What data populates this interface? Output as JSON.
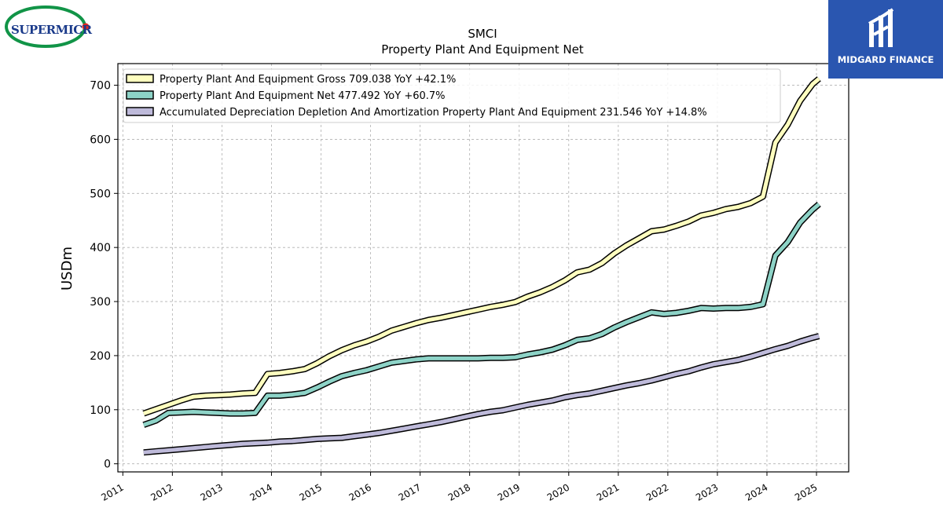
{
  "brand": {
    "left_logo_text": "SUPERMICR",
    "right_logo_text": "MIDGARD FINANCE"
  },
  "colors": {
    "gross": "#ffffbf",
    "net": "#8dd3c7",
    "accum": "#bebada",
    "brand_blue": "#2a56b0",
    "logo_green": "#119447",
    "logo_red": "#e0261f"
  },
  "chart_data": {
    "type": "line",
    "title": "SMCI",
    "subtitle": "Property Plant And Equipment Net",
    "xlabel": "",
    "ylabel": "USDm",
    "ylim": [
      -15,
      740
    ],
    "xlim": [
      2010.9,
      2025.65
    ],
    "yticks": [
      0,
      100,
      200,
      300,
      400,
      500,
      600,
      700
    ],
    "xticks": [
      2011,
      2012,
      2013,
      2014,
      2015,
      2016,
      2017,
      2018,
      2019,
      2020,
      2021,
      2022,
      2023,
      2024,
      2025
    ],
    "grid": true,
    "legend_position": "top-left",
    "x": [
      2011.42,
      2011.67,
      2011.92,
      2012.17,
      2012.42,
      2012.67,
      2012.92,
      2013.17,
      2013.42,
      2013.67,
      2013.92,
      2014.17,
      2014.42,
      2014.67,
      2014.92,
      2015.17,
      2015.42,
      2015.67,
      2015.92,
      2016.17,
      2016.42,
      2016.67,
      2016.92,
      2017.17,
      2017.42,
      2017.67,
      2017.92,
      2018.17,
      2018.42,
      2018.67,
      2018.92,
      2019.17,
      2019.42,
      2019.67,
      2019.92,
      2020.17,
      2020.42,
      2020.67,
      2020.92,
      2021.17,
      2021.42,
      2021.67,
      2021.92,
      2022.17,
      2022.42,
      2022.67,
      2022.92,
      2023.17,
      2023.42,
      2023.67,
      2023.92,
      2024.17,
      2024.42,
      2024.67,
      2024.92,
      2025.05
    ],
    "series": [
      {
        "name": "Property Plant And Equipment Gross",
        "legend_label": "Property Plant And Equipment Gross  709.038 YoY +42.1%",
        "color": "#ffffbf",
        "values": [
          93,
          101,
          109,
          117,
          124,
          126,
          127,
          128,
          130,
          131,
          166,
          168,
          171,
          175,
          186,
          199,
          210,
          219,
          226,
          235,
          246,
          253,
          260,
          266,
          270,
          275,
          280,
          285,
          290,
          294,
          299,
          309,
          317,
          327,
          339,
          354,
          359,
          371,
          389,
          404,
          417,
          430,
          433,
          440,
          448,
          459,
          464,
          471,
          475,
          482,
          494,
          594,
          627,
          671,
          702,
          712
        ]
      },
      {
        "name": "Property Plant And Equipment Net",
        "legend_label": "Property Plant And Equipment Net  477.492 YoY +60.7%",
        "color": "#8dd3c7",
        "values": [
          72,
          80,
          94,
          95,
          96,
          95,
          94,
          93,
          93,
          94,
          126,
          126,
          128,
          131,
          141,
          152,
          162,
          168,
          173,
          180,
          187,
          190,
          193,
          195,
          195,
          195,
          195,
          195,
          196,
          196,
          197,
          202,
          206,
          211,
          219,
          229,
          232,
          240,
          252,
          262,
          271,
          280,
          277,
          279,
          283,
          288,
          287,
          288,
          288,
          290,
          295,
          385,
          410,
          446,
          470,
          480
        ]
      },
      {
        "name": "Accumulated Depreciation Depletion And Amortization Property Plant And Equipment",
        "legend_label": "Accumulated Depreciation Depletion And Amortization Property Plant And Equipment  231.546 YoY +14.8%",
        "color": "#bebada",
        "values": [
          21,
          23,
          25,
          27,
          29,
          31,
          33,
          35,
          37,
          38,
          39,
          41,
          42,
          44,
          46,
          47,
          48,
          51,
          54,
          57,
          61,
          65,
          69,
          73,
          77,
          82,
          87,
          92,
          96,
          99,
          104,
          109,
          113,
          117,
          123,
          127,
          130,
          135,
          140,
          145,
          149,
          154,
          160,
          166,
          171,
          178,
          184,
          188,
          192,
          198,
          205,
          212,
          218,
          226,
          233,
          236
        ]
      }
    ]
  }
}
